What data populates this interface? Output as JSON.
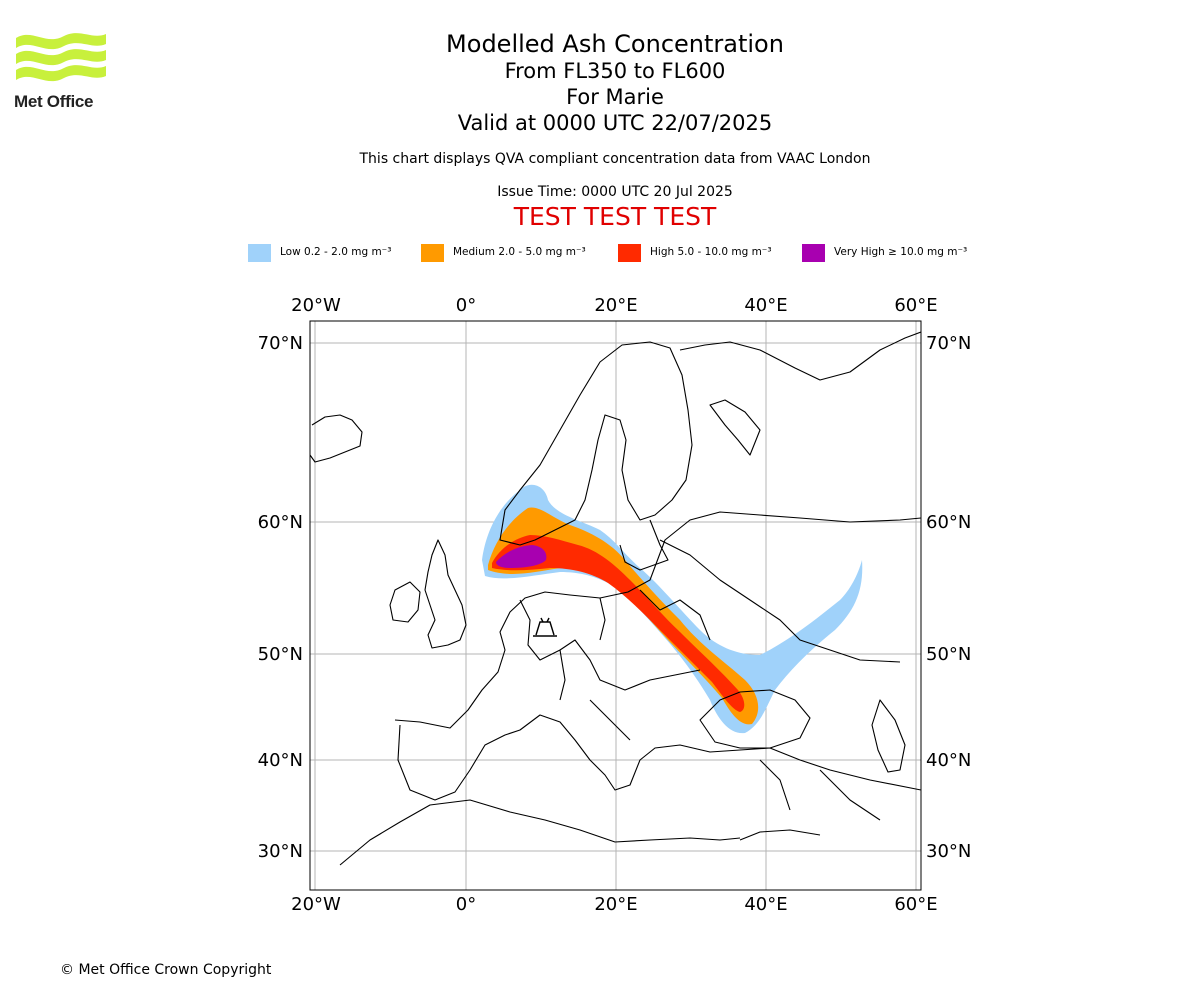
{
  "logo": {
    "name": "Met Office",
    "wave_color": "#c8f03c"
  },
  "header": {
    "title": "Modelled Ash Concentration",
    "levels": "From FL350 to FL600",
    "event": "For Marie",
    "valid": "Valid at 0000 UTC 22/07/2025",
    "note": "This chart displays QVA compliant concentration data from VAAC London",
    "issue": "Issue Time: 0000 UTC 20 Jul 2025",
    "test_banner": "TEST TEST TEST"
  },
  "legend": [
    {
      "label": "Low 0.2 - 2.0 mg m⁻³",
      "color": "#a0d2fa"
    },
    {
      "label": "Medium 2.0 - 5.0 mg m⁻³",
      "color": "#ff9a00"
    },
    {
      "label": "High 5.0 - 10.0 mg m⁻³",
      "color": "#ff2a00"
    },
    {
      "label": "Very High ≥ 10.0 mg m⁻³",
      "color": "#a800b0"
    }
  ],
  "map": {
    "lon_ticks": [
      "20°W",
      "0°",
      "20°E",
      "40°E",
      "60°E"
    ],
    "lat_ticks": [
      "70°N",
      "60°N",
      "50°N",
      "40°N",
      "30°N"
    ],
    "grid": true,
    "volcano_symbol": "volcano-icon"
  },
  "footer": {
    "copyright": "© Met Office Crown Copyright"
  }
}
